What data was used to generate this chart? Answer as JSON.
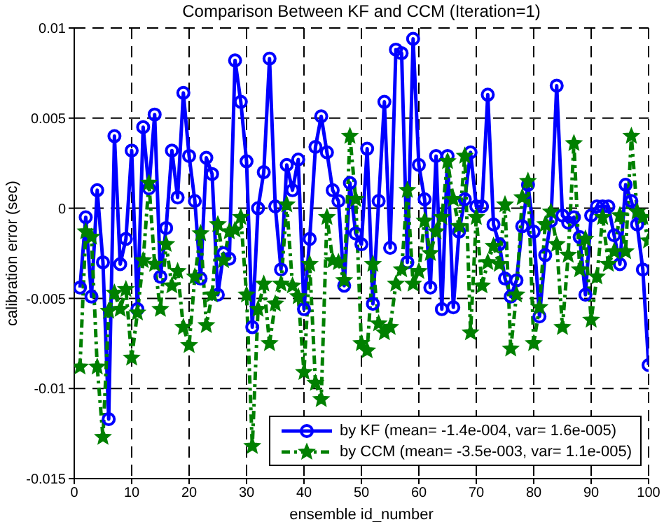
{
  "chart_data": {
    "type": "line",
    "title": "Comparison Between KF and CCM (Iteration=1)",
    "xlabel": "ensemble id_number",
    "ylabel": "calibration error (sec)",
    "x": [
      1,
      2,
      3,
      4,
      5,
      6,
      7,
      8,
      9,
      10,
      11,
      12,
      13,
      14,
      15,
      16,
      17,
      18,
      19,
      20,
      21,
      22,
      23,
      24,
      25,
      26,
      27,
      28,
      29,
      30,
      31,
      32,
      33,
      34,
      35,
      36,
      37,
      38,
      39,
      40,
      41,
      42,
      43,
      44,
      45,
      46,
      47,
      48,
      49,
      50,
      51,
      52,
      53,
      54,
      55,
      56,
      57,
      58,
      59,
      60,
      61,
      62,
      63,
      64,
      65,
      66,
      67,
      68,
      69,
      70,
      71,
      72,
      73,
      74,
      75,
      76,
      77,
      78,
      79,
      80,
      81,
      82,
      83,
      84,
      85,
      86,
      87,
      88,
      89,
      90,
      91,
      92,
      93,
      94,
      95,
      96,
      97,
      98,
      99,
      100
    ],
    "series": [
      {
        "name": "by KF (mean= -1.4e-004, var= 1.6e-005)",
        "color": "#0000ff",
        "marker": "circle",
        "line_style": "solid",
        "values": [
          -0.0044,
          -0.0005,
          -0.0049,
          0.001,
          -0.003,
          -0.0117,
          0.004,
          -0.0031,
          -0.0017,
          0.0032,
          -0.0056,
          0.0045,
          0.0011,
          0.0052,
          -0.0038,
          -0.0011,
          0.0032,
          0.0006,
          0.0064,
          0.0029,
          0.0004,
          -0.0039,
          0.0028,
          0.0019,
          -0.0048,
          -0.0025,
          -0.0028,
          0.0082,
          0.0059,
          0.0026,
          -0.0066,
          0.0,
          0.002,
          0.0083,
          0.0001,
          -0.0034,
          0.0024,
          0.001,
          0.0027,
          -0.0056,
          -0.0017,
          0.0034,
          0.0051,
          0.0031,
          0.001,
          0.0004,
          -0.0043,
          0.0014,
          -0.0014,
          -0.002,
          0.0033,
          -0.0053,
          0.0004,
          0.0059,
          -0.0022,
          0.0088,
          0.0086,
          -0.003,
          0.0094,
          0.0024,
          0.0005,
          -0.0044,
          0.0029,
          -0.0056,
          0.0029,
          -0.0055,
          -0.0013,
          0.0005,
          0.0031,
          0.0001,
          0.0001,
          0.0063,
          -0.0009,
          -0.002,
          -0.0039,
          -0.0049,
          -0.004,
          -0.001,
          0.0013,
          -0.0013,
          -0.006,
          -0.0026,
          -0.0007,
          0.0068,
          -0.0004,
          -0.0008,
          -0.0005,
          -0.0016,
          -0.0048,
          -0.0004,
          0.0001,
          0.0001,
          0.0001,
          -0.0015,
          -0.0031,
          0.0013,
          0.0004,
          -0.0009,
          -0.0034,
          -0.0087
        ]
      },
      {
        "name": "by CCM (mean= -3.5e-003, var= 1.1e-005)",
        "color": "#008000",
        "marker": "star",
        "line_style": "dashed",
        "values": [
          -0.0088,
          -0.0013,
          -0.0016,
          -0.0088,
          -0.0127,
          -0.0057,
          -0.0047,
          -0.0056,
          -0.0045,
          -0.0083,
          -0.0058,
          -0.0029,
          0.0014,
          -0.0031,
          -0.0056,
          -0.002,
          -0.0043,
          -0.0035,
          -0.0066,
          -0.0076,
          -0.0038,
          -0.0014,
          -0.0065,
          -0.0048,
          -0.0009,
          -0.0029,
          -0.0013,
          -0.0012,
          -0.0005,
          -0.0048,
          -0.0132,
          -0.0056,
          -0.0042,
          -0.0075,
          -0.0053,
          -0.0042,
          0.0002,
          -0.0043,
          -0.0049,
          -0.0091,
          -0.0031,
          -0.0097,
          -0.0106,
          -0.0005,
          -0.0029,
          -0.003,
          -0.004,
          0.004,
          0.0005,
          -0.0075,
          -0.0079,
          -0.0031,
          -0.0064,
          -0.0069,
          -0.0066,
          -0.0042,
          -0.0034,
          0.001,
          -0.0042,
          -0.0035,
          -0.0007,
          -0.0025,
          -0.0013,
          -0.0005,
          0.0026,
          0.0005,
          -0.001,
          0.0029,
          -0.0069,
          -0.0005,
          -0.0043,
          -0.003,
          -0.0021,
          -0.0031,
          0.0002,
          -0.0078,
          -0.0048,
          0.0006,
          0.0015,
          -0.0075,
          -0.0055,
          -0.0009,
          -0.0002,
          -0.002,
          -0.0066,
          -0.0026,
          0.0036,
          -0.0034,
          -0.0017,
          -0.0062,
          -0.0038,
          -0.0005,
          -0.0031,
          -0.0024,
          -0.0004,
          -0.0024,
          0.004,
          -0.0002,
          -0.0005,
          -0.0018
        ]
      }
    ],
    "xlim": [
      0,
      100
    ],
    "xticks": [
      0,
      10,
      20,
      30,
      40,
      50,
      60,
      70,
      80,
      90,
      100
    ],
    "ylim": [
      -0.015,
      0.01
    ],
    "yticks": [
      -0.015,
      -0.01,
      -0.005,
      0,
      0.005,
      0.01
    ],
    "grid": true,
    "legend": "bottom right"
  }
}
